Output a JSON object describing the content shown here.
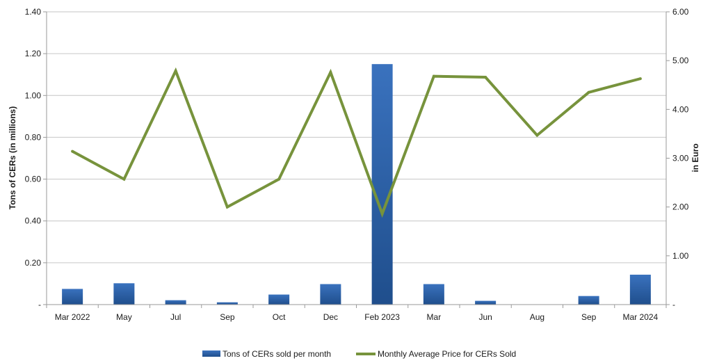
{
  "chart_data": {
    "type": "bar",
    "categories": [
      "Mar 2022",
      "May",
      "Jul",
      "Sep",
      "Oct",
      "Dec",
      "Feb 2023",
      "Mar",
      "Jun",
      "Aug",
      "Sep",
      "Mar 2024"
    ],
    "series": [
      {
        "name": "Tons of CERs sold per month",
        "type": "bar",
        "axis": "left",
        "color": "#2e5fa3",
        "values": [
          0.075,
          0.102,
          0.021,
          0.011,
          0.048,
          0.098,
          1.15,
          0.098,
          0.018,
          0.0,
          0.041,
          0.143
        ]
      },
      {
        "name": "Monthly Average Price for CERs Sold",
        "type": "line",
        "axis": "right",
        "color": "#77933c",
        "values": [
          3.14,
          2.57,
          4.79,
          2.0,
          2.57,
          4.76,
          1.86,
          4.68,
          4.66,
          3.47,
          4.35,
          4.63
        ]
      }
    ],
    "ylabel": "Tons of CERs  (in  millions)",
    "y2label": "in Euro",
    "ylim": [
      0,
      1.4
    ],
    "y2lim": [
      0,
      6
    ],
    "yticks": [
      "-",
      "0.20",
      "0.40",
      "0.60",
      "0.80",
      "1.00",
      "1.20",
      "1.40"
    ],
    "y2ticks": [
      "-",
      "1.00",
      "2.00",
      "3.00",
      "4.00",
      "5.00",
      "6.00"
    ],
    "grid": true,
    "legend_position": "bottom"
  }
}
